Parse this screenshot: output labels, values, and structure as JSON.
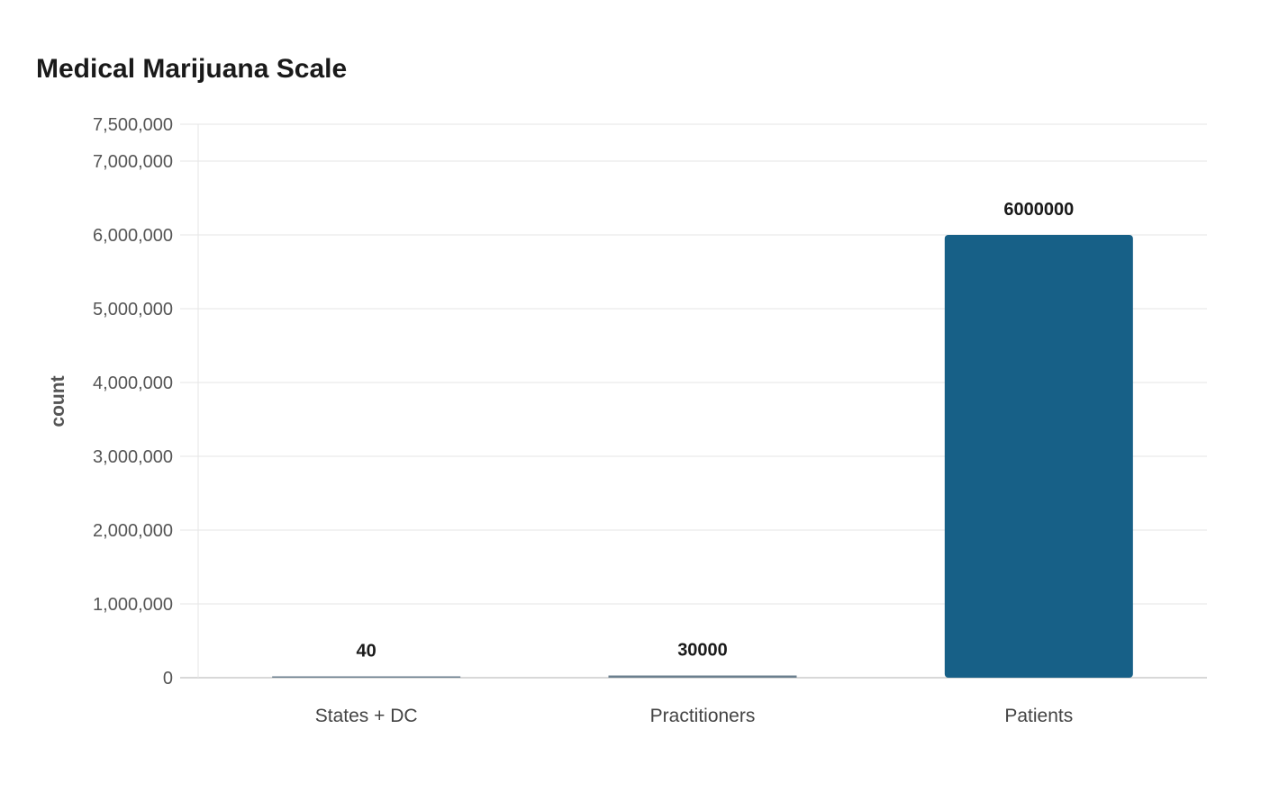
{
  "chart_data": {
    "type": "bar",
    "title": "Medical Marijuana Scale",
    "xlabel": "",
    "ylabel": "count",
    "categories": [
      "States + DC",
      "Practitioners",
      "Patients"
    ],
    "values": [
      40,
      30000,
      6000000
    ],
    "data_labels": [
      "40",
      "30000",
      "6000000"
    ],
    "ylim": [
      0,
      7500000
    ],
    "yticks": [
      0,
      1000000,
      2000000,
      3000000,
      4000000,
      5000000,
      6000000,
      7000000,
      7500000
    ],
    "ytick_labels": [
      "0",
      "1,000,000",
      "2,000,000",
      "3,000,000",
      "4,000,000",
      "5,000,000",
      "6,000,000",
      "7,000,000",
      "7,500,000"
    ],
    "grid": true,
    "legend": "none",
    "colors": {
      "bar": "#176087",
      "small_bar": "#6b7f8e",
      "grid": "#e6e6e6",
      "axis": "#cccccc"
    }
  }
}
